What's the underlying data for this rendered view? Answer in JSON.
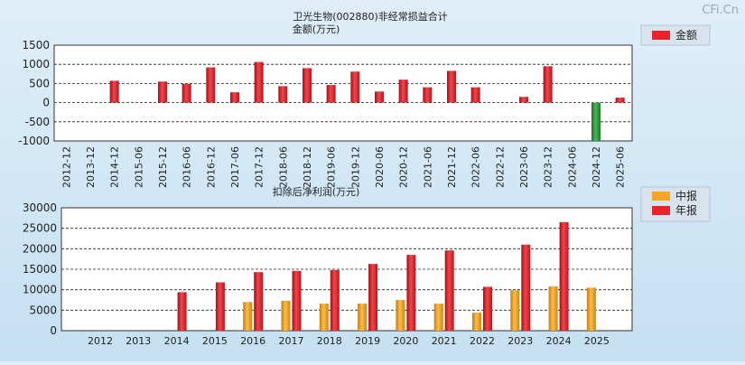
{
  "watermark": "CFi.Cn",
  "colors": {
    "positive": "#e8232a",
    "negative": "#2e9a3a",
    "midyear": "#f5a623",
    "annual": "#e8232a"
  },
  "chart_data": [
    {
      "type": "bar",
      "title": "卫光生物(002880)非经常损益合计",
      "subtitle": "金额(万元)",
      "categories": [
        "2012-12",
        "2013-12",
        "2014-12",
        "2015-06",
        "2015-12",
        "2016-06",
        "2016-12",
        "2017-06",
        "2017-12",
        "2018-06",
        "2018-12",
        "2019-06",
        "2019-12",
        "2020-06",
        "2020-12",
        "2021-06",
        "2021-12",
        "2022-06",
        "2022-12",
        "2023-06",
        "2023-12",
        "2024-06",
        "2024-12",
        "2025-06"
      ],
      "series": [
        {
          "name": "金额",
          "values": [
            null,
            null,
            570,
            null,
            550,
            490,
            920,
            270,
            1060,
            430,
            900,
            460,
            810,
            290,
            600,
            400,
            830,
            400,
            null,
            150,
            950,
            null,
            -1000,
            130
          ]
        }
      ],
      "ylim": [
        -1000,
        1500
      ],
      "yticks": [
        "1500",
        "1000",
        "500",
        "0",
        "-500",
        "-1000"
      ],
      "legend": "top-right",
      "grid": true
    },
    {
      "type": "bar",
      "title": "扣除后净利润(万元)",
      "categories": [
        "2012",
        "2013",
        "2014",
        "2015",
        "2016",
        "2017",
        "2018",
        "2019",
        "2020",
        "2021",
        "2022",
        "2023",
        "2024",
        "2025"
      ],
      "series": [
        {
          "name": "中报",
          "values": [
            null,
            null,
            null,
            null,
            7000,
            7300,
            6600,
            6600,
            7500,
            6600,
            4400,
            9900,
            10800,
            10500
          ]
        },
        {
          "name": "年报",
          "values": [
            null,
            null,
            9400,
            11800,
            14300,
            14600,
            14800,
            16300,
            18500,
            19600,
            10700,
            21000,
            26500,
            null
          ]
        }
      ],
      "ylim": [
        0,
        30000
      ],
      "yticks": [
        "30000",
        "25000",
        "20000",
        "15000",
        "10000",
        "5000",
        "0"
      ],
      "legend": "top-right",
      "grid": true
    }
  ]
}
